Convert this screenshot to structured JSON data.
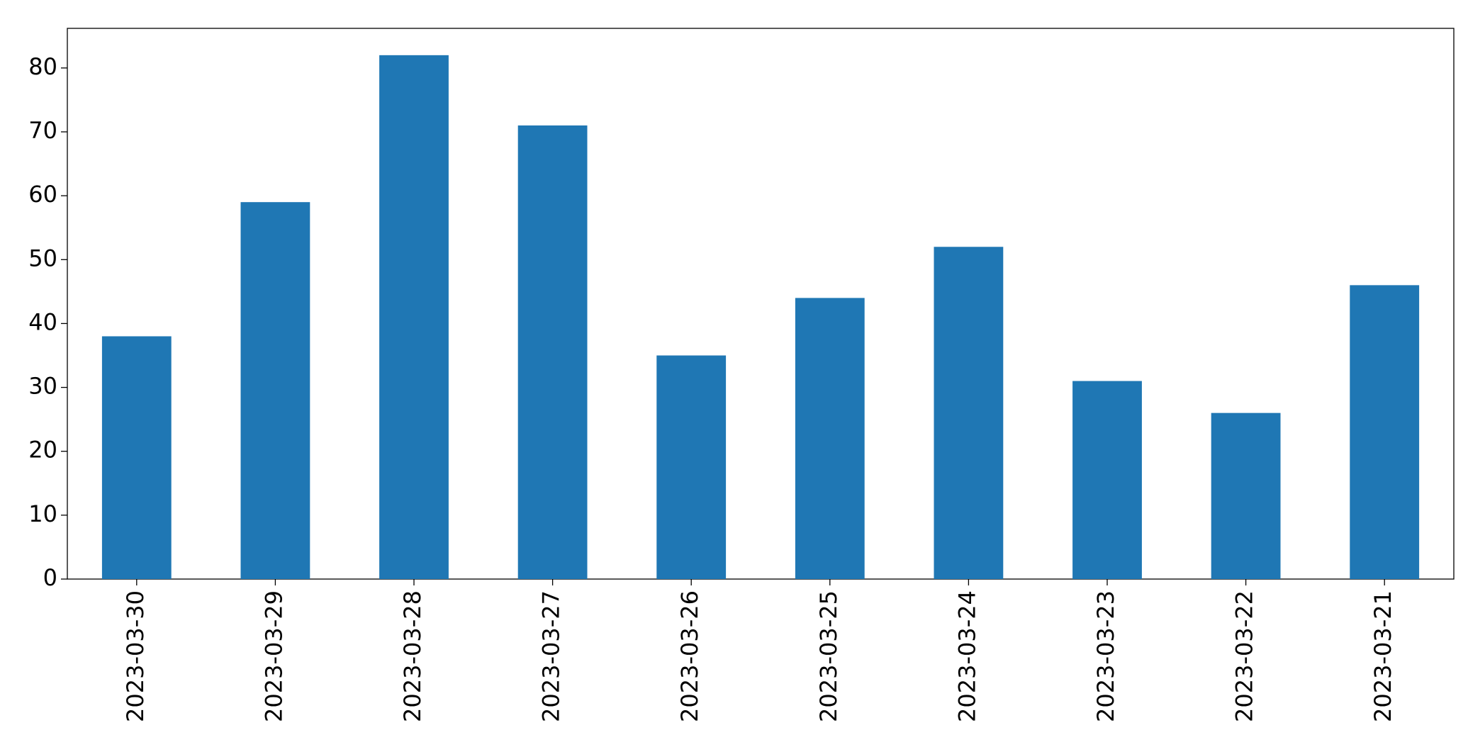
{
  "chart_data": {
    "type": "bar",
    "categories": [
      "2023-03-30",
      "2023-03-29",
      "2023-03-28",
      "2023-03-27",
      "2023-03-26",
      "2023-03-25",
      "2023-03-24",
      "2023-03-23",
      "2023-03-22",
      "2023-03-21"
    ],
    "values": [
      38,
      59,
      82,
      71,
      35,
      44,
      52,
      31,
      26,
      46
    ],
    "color": "#1f77b4",
    "ylim": [
      0,
      86.2
    ],
    "yticks": [
      0,
      10,
      20,
      30,
      40,
      50,
      60,
      70,
      80
    ],
    "grid": false
  }
}
